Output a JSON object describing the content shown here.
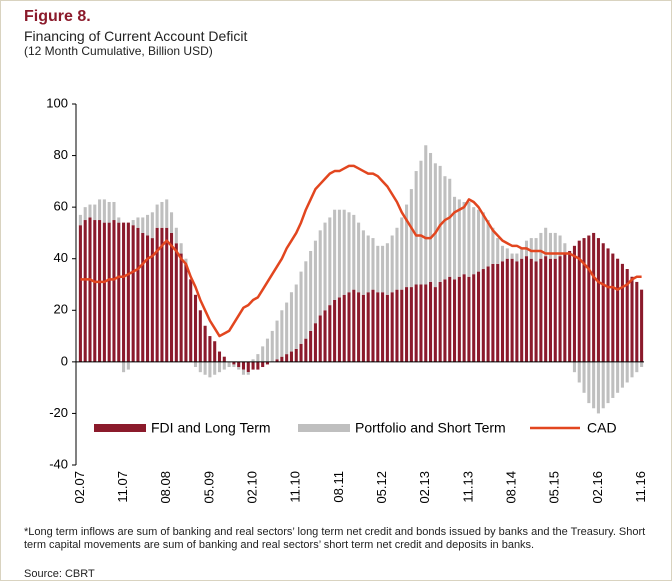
{
  "figure_label": "Figure 8.",
  "chart_data": {
    "type": "stacked_bar_line",
    "title": "Financing of Current Account Deficit",
    "subtitle": "(12 Month Cumulative, Billion USD)",
    "categories": [
      "02.07",
      null,
      null,
      null,
      null,
      null,
      null,
      null,
      null,
      "11.07",
      null,
      null,
      null,
      null,
      null,
      null,
      null,
      null,
      "08.08",
      null,
      null,
      null,
      null,
      null,
      null,
      null,
      null,
      "05.09",
      null,
      null,
      null,
      null,
      null,
      null,
      null,
      null,
      "02.10",
      null,
      null,
      null,
      null,
      null,
      null,
      null,
      null,
      "11.10",
      null,
      null,
      null,
      null,
      null,
      null,
      null,
      null,
      "08.11",
      null,
      null,
      null,
      null,
      null,
      null,
      null,
      null,
      "05.12",
      null,
      null,
      null,
      null,
      null,
      null,
      null,
      null,
      "02.13",
      null,
      null,
      null,
      null,
      null,
      null,
      null,
      null,
      "11.13",
      null,
      null,
      null,
      null,
      null,
      null,
      null,
      null,
      "08.14",
      null,
      null,
      null,
      null,
      null,
      null,
      null,
      null,
      "05.15",
      null,
      null,
      null,
      null,
      null,
      null,
      null,
      null,
      "02.16",
      null,
      null,
      null,
      null,
      null,
      null,
      null,
      null,
      "11.16"
    ],
    "series": [
      {
        "name": "FDI and Long Term",
        "kind": "bar",
        "color": "#8b1a2b",
        "values": [
          53,
          55,
          56,
          55,
          55,
          54,
          54,
          55,
          54,
          54,
          54,
          53,
          52,
          50,
          49,
          48,
          52,
          52,
          52,
          50,
          46,
          42,
          38,
          32,
          26,
          20,
          14,
          10,
          8,
          4,
          2,
          0,
          -1,
          -2,
          -3,
          -4,
          -3,
          -3,
          -2,
          -1,
          0,
          1,
          2,
          3,
          4,
          5,
          7,
          9,
          12,
          15,
          18,
          20,
          22,
          24,
          25,
          26,
          27,
          28,
          27,
          26,
          27,
          28,
          27,
          27,
          26,
          27,
          28,
          28,
          29,
          29,
          30,
          30,
          30,
          31,
          29,
          31,
          32,
          33,
          32,
          33,
          34,
          33,
          34,
          35,
          36,
          37,
          38,
          38,
          39,
          40,
          40,
          39,
          40,
          41,
          40,
          39,
          40,
          41,
          40,
          40,
          41,
          42,
          43,
          45,
          47,
          48,
          49,
          50,
          48,
          46,
          44,
          42,
          40,
          38,
          36,
          33,
          31,
          28
        ]
      },
      {
        "name": "Portfolio and Short Term",
        "kind": "bar",
        "color": "#bfbfbf",
        "values": [
          4,
          5,
          5,
          6,
          8,
          9,
          8,
          7,
          2,
          -4,
          -3,
          2,
          4,
          6,
          8,
          10,
          9,
          10,
          11,
          8,
          6,
          4,
          2,
          0,
          -2,
          -4,
          -5,
          -6,
          -5,
          -4,
          -3,
          -2,
          -1,
          -1,
          -2,
          -1,
          1,
          3,
          6,
          9,
          12,
          15,
          18,
          20,
          23,
          25,
          28,
          30,
          31,
          32,
          33,
          34,
          34,
          35,
          34,
          33,
          31,
          29,
          27,
          25,
          22,
          20,
          18,
          18,
          20,
          22,
          24,
          28,
          32,
          38,
          44,
          48,
          54,
          50,
          48,
          45,
          40,
          38,
          32,
          30,
          28,
          29,
          26,
          24,
          22,
          18,
          14,
          10,
          6,
          4,
          2,
          3,
          4,
          6,
          8,
          9,
          10,
          11,
          10,
          10,
          8,
          4,
          0,
          -4,
          -8,
          -12,
          -16,
          -18,
          -20,
          -18,
          -16,
          -14,
          -12,
          -10,
          -8,
          -6,
          -4,
          -2
        ]
      },
      {
        "name": "CAD",
        "kind": "line",
        "color": "#e2461f",
        "values": [
          32,
          32,
          32,
          31,
          31,
          31,
          32,
          32,
          33,
          33,
          34,
          35,
          36,
          38,
          40,
          41,
          43,
          45,
          47,
          45,
          43,
          40,
          38,
          33,
          29,
          24,
          20,
          16,
          13,
          10,
          11,
          12,
          15,
          18,
          21,
          22,
          24,
          25,
          28,
          31,
          34,
          37,
          40,
          44,
          47,
          50,
          54,
          59,
          63,
          67,
          69,
          71,
          73,
          74,
          74,
          75,
          76,
          76,
          75,
          74,
          73,
          73,
          72,
          70,
          68,
          65,
          62,
          58,
          55,
          52,
          49,
          49,
          48,
          48,
          50,
          53,
          55,
          56,
          58,
          59,
          60,
          63,
          62,
          60,
          57,
          54,
          51,
          49,
          47,
          46,
          45,
          45,
          44,
          44,
          43,
          43,
          43,
          42,
          42,
          42,
          42,
          42,
          42,
          41,
          40,
          38,
          36,
          33,
          31,
          30,
          29,
          29,
          28,
          29,
          30,
          32,
          33,
          33
        ]
      }
    ],
    "ylim": [
      -40,
      100
    ],
    "yticks": [
      -40,
      -20,
      0,
      20,
      40,
      60,
      80,
      100
    ],
    "grid": false,
    "legend": "lower center"
  },
  "footnote": "*Long term inflows are sum of banking and real sectors’ long term net credit and bonds issued by banks and the Treasury. Short term capital movements are sum of banking and real sectors’ short term net credit and deposits in banks.",
  "source": "Source: CBRT"
}
